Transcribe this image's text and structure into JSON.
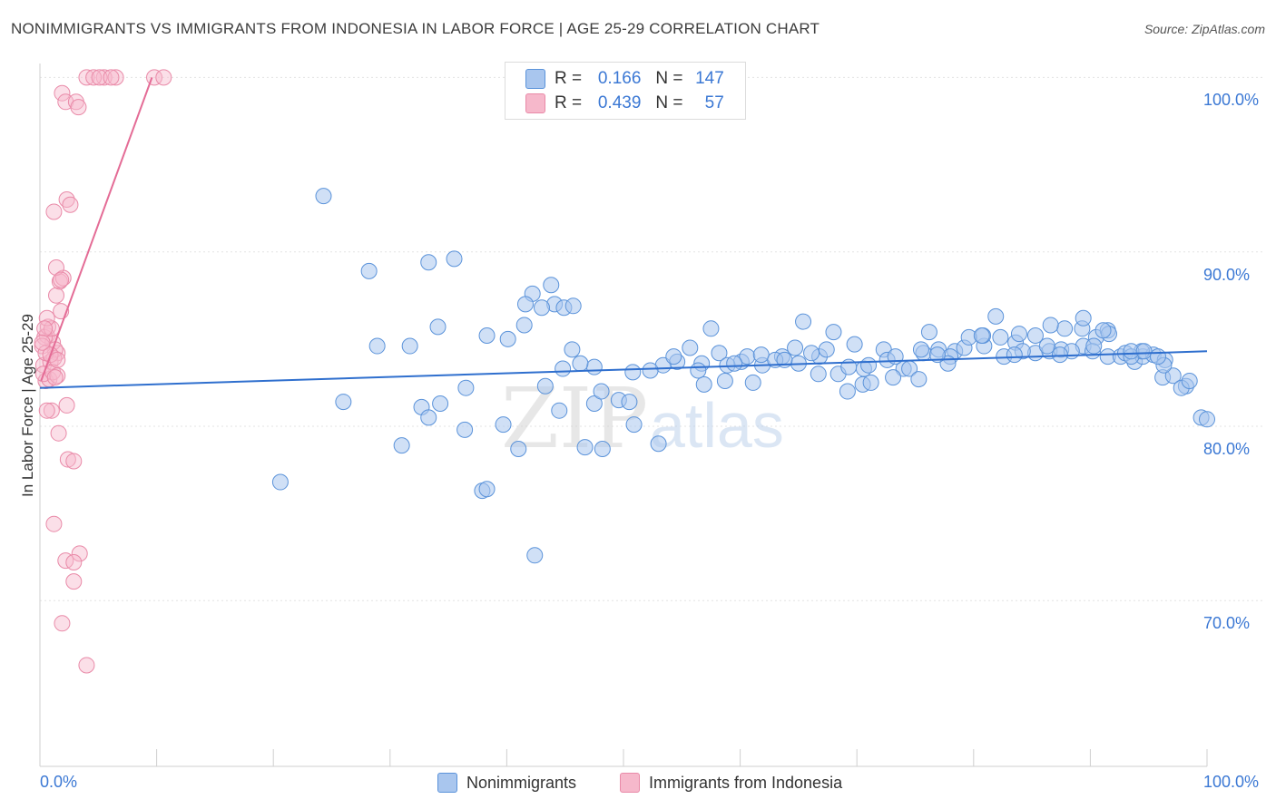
{
  "title": "NONIMMIGRANTS VS IMMIGRANTS FROM INDONESIA IN LABOR FORCE | AGE 25-29 CORRELATION CHART",
  "source": "Source: ZipAtlas.com",
  "watermark": {
    "zip": "ZIP",
    "atlas": "atlas"
  },
  "legend_top": {
    "row1": {
      "r_label": "R =",
      "r_value": "0.166",
      "n_label": "N =",
      "n_value": "147"
    },
    "row2": {
      "r_label": "R =",
      "r_value": "0.439",
      "n_label": "N =",
      "n_value": "57"
    }
  },
  "colors": {
    "blue_fill": "#a9c6ee",
    "blue_stroke": "#5b93da",
    "blue_line": "#2f6fce",
    "pink_fill": "#f6b8cb",
    "pink_stroke": "#e98aa8",
    "pink_line": "#e46c96",
    "axis_text": "#3b78d4",
    "grid": "#e3e3e3"
  },
  "chart_data": {
    "type": "scatter",
    "title": "NONIMMIGRANTS VS IMMIGRANTS FROM INDONESIA IN LABOR FORCE | AGE 25-29 CORRELATION CHART",
    "xlabel": "",
    "ylabel": "In Labor Force | Age 25-29",
    "xlim": [
      0,
      100
    ],
    "ylim": [
      60.5,
      100.8
    ],
    "x_tick_labels": [
      "0.0%",
      "100.0%"
    ],
    "y_ticks": [
      100,
      90,
      80,
      70
    ],
    "y_tick_labels": [
      "100.0%",
      "90.0%",
      "80.0%",
      "70.0%"
    ],
    "legend": [
      "Nonimmigrants",
      "Immigrants from Indonesia"
    ],
    "series": [
      {
        "name": "Nonimmigrants",
        "r": 0.166,
        "n": 147,
        "trend": {
          "x": [
            0,
            100
          ],
          "y": [
            82.2,
            84.3
          ]
        },
        "points": [
          [
            24.3,
            93.2
          ],
          [
            28.2,
            88.9
          ],
          [
            35.5,
            89.6
          ],
          [
            36.4,
            79.8
          ],
          [
            37.9,
            76.3
          ],
          [
            42.4,
            72.6
          ],
          [
            44.8,
            83.3
          ],
          [
            47.5,
            83.4
          ],
          [
            54.6,
            83.7
          ],
          [
            56.7,
            83.6
          ],
          [
            60.1,
            83.7
          ],
          [
            61.9,
            83.5
          ],
          [
            63.6,
            84.0
          ],
          [
            66.7,
            83.0
          ],
          [
            68.4,
            83.0
          ],
          [
            70.6,
            83.3
          ],
          [
            72.3,
            84.4
          ],
          [
            74.0,
            83.3
          ],
          [
            75.7,
            84.2
          ],
          [
            77.0,
            84.4
          ],
          [
            78.4,
            84.3
          ],
          [
            80.9,
            84.6
          ],
          [
            81.9,
            86.3
          ],
          [
            83.6,
            84.8
          ],
          [
            85.3,
            84.2
          ],
          [
            86.5,
            84.3
          ],
          [
            87.5,
            84.4
          ],
          [
            89.4,
            84.6
          ],
          [
            90.5,
            85.1
          ],
          [
            91.5,
            84.0
          ],
          [
            92.6,
            84.0
          ],
          [
            93.8,
            83.7
          ],
          [
            94.5,
            84.0
          ],
          [
            95.4,
            84.1
          ],
          [
            96.2,
            82.8
          ],
          [
            97.1,
            82.9
          ],
          [
            98.2,
            82.3
          ],
          [
            99.5,
            80.5
          ],
          [
            100.0,
            80.4
          ],
          [
            31.0,
            78.9
          ],
          [
            32.7,
            81.1
          ],
          [
            34.1,
            85.7
          ],
          [
            36.5,
            82.2
          ],
          [
            38.3,
            85.2
          ],
          [
            39.7,
            80.1
          ],
          [
            41.0,
            78.7
          ],
          [
            43.3,
            82.3
          ],
          [
            45.6,
            84.4
          ],
          [
            47.5,
            81.3
          ],
          [
            48.1,
            82.0
          ],
          [
            49.6,
            81.5
          ],
          [
            50.5,
            81.4
          ],
          [
            53.4,
            83.5
          ],
          [
            54.3,
            84.0
          ],
          [
            56.9,
            82.4
          ],
          [
            58.2,
            84.2
          ],
          [
            58.9,
            83.5
          ],
          [
            60.6,
            84.0
          ],
          [
            61.8,
            84.1
          ],
          [
            64.7,
            84.5
          ],
          [
            65.4,
            86.0
          ],
          [
            66.8,
            84.0
          ],
          [
            68.0,
            85.4
          ],
          [
            69.3,
            83.4
          ],
          [
            70.5,
            82.4
          ],
          [
            71.2,
            82.5
          ],
          [
            73.1,
            82.8
          ],
          [
            74.5,
            83.3
          ],
          [
            75.5,
            84.4
          ],
          [
            76.2,
            85.4
          ],
          [
            78.0,
            84.0
          ],
          [
            79.2,
            84.5
          ],
          [
            80.8,
            85.2
          ],
          [
            82.6,
            84.0
          ],
          [
            84.2,
            84.3
          ],
          [
            85.3,
            85.2
          ],
          [
            86.3,
            84.6
          ],
          [
            87.8,
            85.6
          ],
          [
            89.3,
            85.6
          ],
          [
            90.2,
            84.3
          ],
          [
            91.5,
            85.5
          ],
          [
            93.0,
            84.2
          ],
          [
            94.4,
            84.3
          ],
          [
            96.4,
            83.8
          ],
          [
            97.8,
            82.2
          ],
          [
            20.6,
            76.8
          ],
          [
            26.0,
            81.4
          ],
          [
            31.7,
            84.6
          ],
          [
            34.3,
            81.3
          ],
          [
            38.3,
            76.4
          ],
          [
            43.8,
            88.1
          ],
          [
            44.5,
            80.9
          ],
          [
            46.7,
            78.8
          ],
          [
            48.2,
            78.7
          ],
          [
            50.9,
            80.1
          ],
          [
            52.3,
            83.2
          ],
          [
            55.7,
            84.5
          ],
          [
            57.5,
            85.6
          ],
          [
            59.5,
            83.6
          ],
          [
            61.1,
            82.5
          ],
          [
            63.0,
            83.8
          ],
          [
            65.0,
            83.6
          ],
          [
            67.4,
            84.4
          ],
          [
            69.2,
            82.0
          ],
          [
            71.0,
            83.5
          ],
          [
            72.6,
            83.8
          ],
          [
            75.3,
            82.7
          ],
          [
            77.8,
            83.6
          ],
          [
            79.6,
            85.1
          ],
          [
            80.7,
            85.2
          ],
          [
            82.3,
            85.1
          ],
          [
            83.9,
            85.3
          ],
          [
            86.6,
            85.8
          ],
          [
            88.4,
            84.3
          ],
          [
            90.3,
            84.6
          ],
          [
            91.6,
            85.3
          ],
          [
            93.5,
            84.0
          ],
          [
            96.3,
            83.5
          ],
          [
            98.5,
            82.6
          ],
          [
            28.9,
            84.6
          ],
          [
            33.3,
            80.5
          ],
          [
            40.1,
            85.0
          ],
          [
            41.5,
            85.8
          ],
          [
            44.1,
            87.0
          ],
          [
            46.3,
            83.6
          ],
          [
            50.8,
            83.1
          ],
          [
            53.0,
            79.0
          ],
          [
            56.4,
            83.2
          ],
          [
            58.7,
            82.6
          ],
          [
            63.8,
            83.8
          ],
          [
            66.1,
            84.2
          ],
          [
            69.8,
            84.7
          ],
          [
            73.3,
            84.0
          ],
          [
            76.9,
            84.1
          ],
          [
            83.5,
            84.1
          ],
          [
            87.4,
            84.1
          ],
          [
            89.4,
            86.2
          ],
          [
            91.1,
            85.5
          ],
          [
            93.5,
            84.3
          ],
          [
            94.6,
            84.3
          ],
          [
            95.8,
            84.0
          ],
          [
            44.9,
            86.8
          ],
          [
            45.7,
            86.9
          ],
          [
            33.3,
            89.4
          ],
          [
            43.0,
            86.8
          ],
          [
            42.2,
            87.6
          ],
          [
            41.6,
            87.0
          ]
        ]
      },
      {
        "name": "Immigrants from Indonesia",
        "r": 0.439,
        "n": 57,
        "trend": {
          "x": [
            0.1,
            9.6
          ],
          "y": [
            82.6,
            100.0
          ]
        },
        "points": [
          [
            0.5,
            82.6
          ],
          [
            1.0,
            80.9
          ],
          [
            0.3,
            83.5
          ],
          [
            0.8,
            82.7
          ],
          [
            1.5,
            84.2
          ],
          [
            0.6,
            85.2
          ],
          [
            1.1,
            84.8
          ],
          [
            0.9,
            83.7
          ],
          [
            0.4,
            85.1
          ],
          [
            1.3,
            84.4
          ],
          [
            0.2,
            84.6
          ],
          [
            0.7,
            85.7
          ],
          [
            1.2,
            83.9
          ],
          [
            0.5,
            84.2
          ],
          [
            1.0,
            85.6
          ],
          [
            1.8,
            86.6
          ],
          [
            1.4,
            87.5
          ],
          [
            1.7,
            88.3
          ],
          [
            2.0,
            88.5
          ],
          [
            2.3,
            93.0
          ],
          [
            2.6,
            92.7
          ],
          [
            1.2,
            92.3
          ],
          [
            1.9,
            99.1
          ],
          [
            2.2,
            98.6
          ],
          [
            3.1,
            98.6
          ],
          [
            4.0,
            100.0
          ],
          [
            5.5,
            100.0
          ],
          [
            6.5,
            100.0
          ],
          [
            9.8,
            100.0
          ],
          [
            10.6,
            100.0
          ],
          [
            4.6,
            100.0
          ],
          [
            5.1,
            100.0
          ],
          [
            6.1,
            100.0
          ],
          [
            0.3,
            83.0
          ],
          [
            1.1,
            83.1
          ],
          [
            1.5,
            82.9
          ],
          [
            0.9,
            84.1
          ],
          [
            0.6,
            86.2
          ],
          [
            1.4,
            89.1
          ],
          [
            1.8,
            88.4
          ],
          [
            2.3,
            81.2
          ],
          [
            1.6,
            79.6
          ],
          [
            2.4,
            78.1
          ],
          [
            2.9,
            78.0
          ],
          [
            1.2,
            74.4
          ],
          [
            2.2,
            72.3
          ],
          [
            3.4,
            72.7
          ],
          [
            2.9,
            72.2
          ],
          [
            2.9,
            71.1
          ],
          [
            1.9,
            68.7
          ],
          [
            4.0,
            66.3
          ],
          [
            3.3,
            98.3
          ],
          [
            0.4,
            85.6
          ],
          [
            0.2,
            84.8
          ],
          [
            1.3,
            82.8
          ],
          [
            0.6,
            80.9
          ],
          [
            1.5,
            83.8
          ]
        ]
      }
    ]
  },
  "legend_bottom": {
    "series1": "Nonimmigrants",
    "series2": "Immigrants from Indonesia"
  },
  "axis": {
    "x_min_label": "0.0%",
    "x_max_label": "100.0%",
    "ylabel": "In Labor Force | Age 25-29"
  }
}
